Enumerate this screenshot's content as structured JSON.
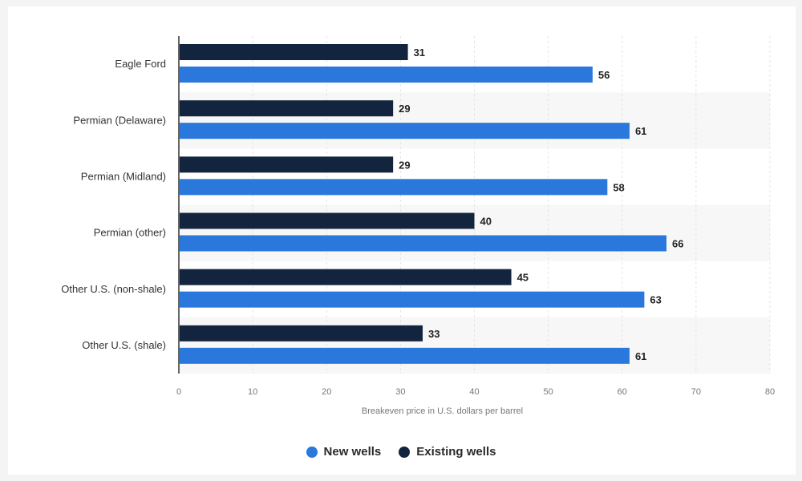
{
  "chart_data": {
    "type": "bar",
    "orientation": "horizontal",
    "categories": [
      "Eagle Ford",
      "Permian (Delaware)",
      "Permian (Midland)",
      "Permian (other)",
      "Other U.S. (non-shale)",
      "Other U.S. (shale)"
    ],
    "series": [
      {
        "name": "Existing wells",
        "values": [
          31,
          29,
          29,
          40,
          45,
          33
        ],
        "color": "#13243e"
      },
      {
        "name": "New wells",
        "values": [
          56,
          61,
          58,
          66,
          63,
          61
        ],
        "color": "#2a78dc"
      }
    ],
    "xlabel": "Breakeven price in U.S. dollars per barrel",
    "xlim": [
      0,
      80
    ],
    "xticks": [
      0,
      10,
      20,
      30,
      40,
      50,
      60,
      70,
      80
    ],
    "grid": true,
    "legend_placement": "bottom-center",
    "legend_order": [
      "New wells",
      "Existing wells"
    ]
  }
}
